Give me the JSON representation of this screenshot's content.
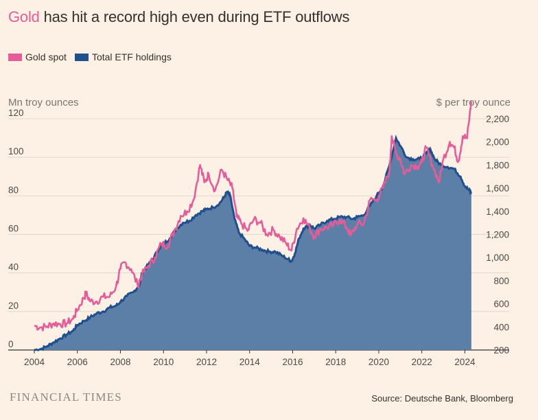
{
  "title": {
    "highlight": "Gold",
    "rest": " has hit a record high even during ETF outflows"
  },
  "legend": [
    {
      "label": "Gold spot",
      "color": "#e55c99"
    },
    {
      "label": "Total ETF holdings",
      "color": "#1f4f8c"
    }
  ],
  "footer": {
    "brand": "FINANCIAL TIMES",
    "source": "Source: Deutsche Bank, Bloomberg"
  },
  "chart_data": {
    "type": "area",
    "title": "Gold has hit a record high even during ETF outflows",
    "y_left_label": "Mn troy ounces",
    "y_right_label": "$ per troy ounce",
    "x_ticks": [
      "2004",
      "2006",
      "2008",
      "2010",
      "2012",
      "2014",
      "2016",
      "2018",
      "2020",
      "2022",
      "2024"
    ],
    "y_left_ticks": [
      "0",
      "20",
      "40",
      "60",
      "80",
      "100",
      "120"
    ],
    "y_right_ticks": [
      "200",
      "400",
      "600",
      "800",
      "1,000",
      "1,200",
      "1,400",
      "1,600",
      "1,800",
      "2,000",
      "2,200"
    ],
    "x_range": [
      2004,
      2024.4
    ],
    "y_left_range": [
      0,
      120
    ],
    "y_right_range": [
      200,
      2200
    ],
    "grid": true,
    "legend_position": "top-left",
    "series": [
      {
        "name": "Total ETF holdings",
        "axis": "left",
        "color": "#1f4f8c",
        "fill": "#5b7fa6",
        "points": [
          [
            2004.0,
            0
          ],
          [
            2004.3,
            0.5
          ],
          [
            2004.6,
            2
          ],
          [
            2004.9,
            4
          ],
          [
            2005.2,
            6
          ],
          [
            2005.5,
            8
          ],
          [
            2005.8,
            10
          ],
          [
            2006.0,
            13
          ],
          [
            2006.3,
            15
          ],
          [
            2006.6,
            17
          ],
          [
            2006.9,
            19
          ],
          [
            2007.2,
            20
          ],
          [
            2007.5,
            22
          ],
          [
            2007.8,
            23
          ],
          [
            2008.0,
            25
          ],
          [
            2008.3,
            28
          ],
          [
            2008.6,
            30
          ],
          [
            2008.9,
            34
          ],
          [
            2009.0,
            40
          ],
          [
            2009.2,
            43
          ],
          [
            2009.5,
            47
          ],
          [
            2009.8,
            53
          ],
          [
            2010.0,
            55
          ],
          [
            2010.3,
            58
          ],
          [
            2010.6,
            63
          ],
          [
            2010.9,
            66
          ],
          [
            2011.2,
            67
          ],
          [
            2011.5,
            70
          ],
          [
            2011.8,
            72
          ],
          [
            2012.0,
            73
          ],
          [
            2012.3,
            74
          ],
          [
            2012.6,
            76
          ],
          [
            2012.8,
            79
          ],
          [
            2012.95,
            82
          ],
          [
            2013.1,
            80
          ],
          [
            2013.3,
            68
          ],
          [
            2013.5,
            61
          ],
          [
            2013.8,
            57
          ],
          [
            2014.0,
            54
          ],
          [
            2014.3,
            53
          ],
          [
            2014.6,
            52
          ],
          [
            2014.9,
            51
          ],
          [
            2015.2,
            51
          ],
          [
            2015.5,
            49
          ],
          [
            2015.8,
            47
          ],
          [
            2015.95,
            46
          ],
          [
            2016.1,
            50
          ],
          [
            2016.3,
            58
          ],
          [
            2016.5,
            63
          ],
          [
            2016.8,
            65
          ],
          [
            2017.0,
            63
          ],
          [
            2017.3,
            65
          ],
          [
            2017.6,
            67
          ],
          [
            2017.9,
            68
          ],
          [
            2018.2,
            69
          ],
          [
            2018.5,
            69
          ],
          [
            2018.8,
            68
          ],
          [
            2019.0,
            69
          ],
          [
            2019.3,
            70
          ],
          [
            2019.6,
            75
          ],
          [
            2019.9,
            80
          ],
          [
            2020.2,
            85
          ],
          [
            2020.5,
            96
          ],
          [
            2020.8,
            110
          ],
          [
            2021.0,
            106
          ],
          [
            2021.3,
            100
          ],
          [
            2021.6,
            99
          ],
          [
            2021.9,
            99
          ],
          [
            2022.2,
            102
          ],
          [
            2022.4,
            104
          ],
          [
            2022.6,
            99
          ],
          [
            2022.9,
            96
          ],
          [
            2023.2,
            95
          ],
          [
            2023.5,
            94
          ],
          [
            2023.8,
            90
          ],
          [
            2024.0,
            85
          ],
          [
            2024.2,
            83
          ],
          [
            2024.3,
            81
          ]
        ]
      },
      {
        "name": "Gold spot",
        "axis": "right",
        "color": "#e55c99",
        "points": [
          [
            2004.0,
            410
          ],
          [
            2004.3,
            395
          ],
          [
            2004.6,
            405
          ],
          [
            2004.9,
            430
          ],
          [
            2005.2,
            425
          ],
          [
            2005.5,
            430
          ],
          [
            2005.8,
            470
          ],
          [
            2006.0,
            550
          ],
          [
            2006.3,
            650
          ],
          [
            2006.4,
            690
          ],
          [
            2006.6,
            620
          ],
          [
            2006.9,
            620
          ],
          [
            2007.2,
            660
          ],
          [
            2007.5,
            660
          ],
          [
            2007.8,
            750
          ],
          [
            2008.0,
            900
          ],
          [
            2008.2,
            960
          ],
          [
            2008.5,
            900
          ],
          [
            2008.8,
            760
          ],
          [
            2009.0,
            850
          ],
          [
            2009.3,
            930
          ],
          [
            2009.6,
            1000
          ],
          [
            2009.9,
            1120
          ],
          [
            2010.2,
            1100
          ],
          [
            2010.5,
            1230
          ],
          [
            2010.8,
            1360
          ],
          [
            2011.1,
            1400
          ],
          [
            2011.4,
            1500
          ],
          [
            2011.7,
            1800
          ],
          [
            2011.9,
            1650
          ],
          [
            2012.1,
            1720
          ],
          [
            2012.4,
            1580
          ],
          [
            2012.7,
            1760
          ],
          [
            2012.95,
            1680
          ],
          [
            2013.2,
            1600
          ],
          [
            2013.4,
            1350
          ],
          [
            2013.6,
            1300
          ],
          [
            2013.9,
            1230
          ],
          [
            2014.2,
            1330
          ],
          [
            2014.5,
            1300
          ],
          [
            2014.8,
            1200
          ],
          [
            2015.1,
            1240
          ],
          [
            2015.4,
            1180
          ],
          [
            2015.7,
            1120
          ],
          [
            2015.95,
            1060
          ],
          [
            2016.2,
            1250
          ],
          [
            2016.5,
            1340
          ],
          [
            2016.8,
            1250
          ],
          [
            2017.0,
            1180
          ],
          [
            2017.3,
            1250
          ],
          [
            2017.6,
            1260
          ],
          [
            2017.9,
            1280
          ],
          [
            2018.2,
            1330
          ],
          [
            2018.5,
            1260
          ],
          [
            2018.7,
            1190
          ],
          [
            2019.0,
            1290
          ],
          [
            2019.3,
            1290
          ],
          [
            2019.6,
            1500
          ],
          [
            2019.9,
            1500
          ],
          [
            2020.2,
            1600
          ],
          [
            2020.5,
            1750
          ],
          [
            2020.6,
            2050
          ],
          [
            2020.8,
            1900
          ],
          [
            2021.0,
            1850
          ],
          [
            2021.2,
            1720
          ],
          [
            2021.5,
            1800
          ],
          [
            2021.8,
            1790
          ],
          [
            2022.0,
            1820
          ],
          [
            2022.2,
            1950
          ],
          [
            2022.5,
            1800
          ],
          [
            2022.8,
            1650
          ],
          [
            2023.0,
            1850
          ],
          [
            2023.3,
            2000
          ],
          [
            2023.5,
            1950
          ],
          [
            2023.7,
            1830
          ],
          [
            2023.9,
            2050
          ],
          [
            2024.1,
            2030
          ],
          [
            2024.3,
            2350
          ]
        ]
      }
    ]
  }
}
